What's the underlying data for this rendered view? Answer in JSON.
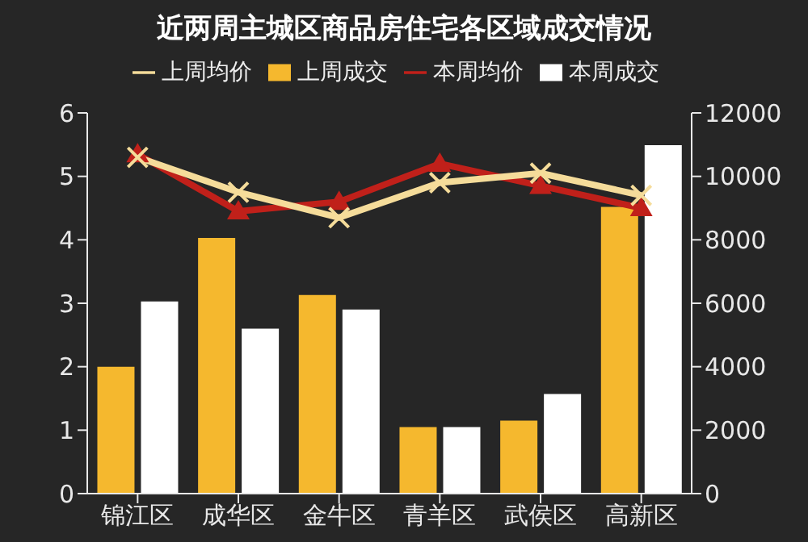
{
  "chart_data": {
    "type": "bar",
    "title": "近两周主城区商品房住宅各区域成交情况",
    "categories": [
      "锦江区",
      "成华区",
      "金牛区",
      "青羊区",
      "武侯区",
      "高新区"
    ],
    "series": [
      {
        "name": "上周成交",
        "color": "#f5b82e",
        "values": [
          2.0,
          4.03,
          3.13,
          1.05,
          1.15,
          4.52
        ]
      },
      {
        "name": "本周成交",
        "color": "#ffffff",
        "values": [
          3.03,
          2.6,
          2.9,
          1.05,
          1.57,
          5.49
        ]
      },
      {
        "name": "本周均价",
        "type": "line",
        "axis": "y2",
        "color": "#c0201a",
        "marker": "triangle",
        "values": [
          10700,
          8900,
          9200,
          10400,
          9700,
          9000
        ]
      },
      {
        "name": "上周均价",
        "type": "line",
        "axis": "y2",
        "color": "#f5dc9a",
        "marker": "cross",
        "values": [
          10600,
          9500,
          8700,
          9800,
          10100,
          9400
        ]
      }
    ],
    "ylim": [
      0,
      6
    ],
    "yticks": [
      0,
      1,
      2,
      3,
      4,
      5,
      6
    ],
    "y2lim": [
      0,
      12000
    ],
    "y2ticks": [
      0,
      2000,
      4000,
      6000,
      8000,
      10000,
      12000
    ],
    "grid": false,
    "legend": "top"
  }
}
